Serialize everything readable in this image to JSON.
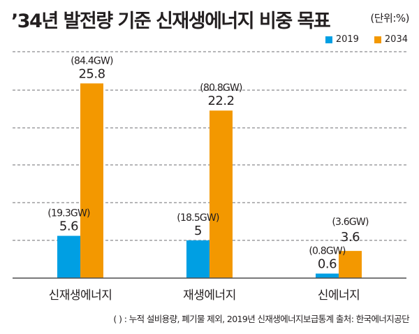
{
  "title": "’34년 발전량 기준 신재생에너지 비중 목표",
  "unit_label": "(단위:%)",
  "footnote": "( ) : 누적 설비용량, 폐기물 제외, 2019년 신재생에너지보급통계 출처: 한국에너지공단",
  "colors": {
    "series_2019": "#009fe3",
    "series_2034": "#f39800",
    "grid": "#6d6e71",
    "axis": "#4d4d4f",
    "text": "#231f20"
  },
  "chart_data": {
    "type": "bar",
    "title": "’34년 발전량 기준 신재생에너지 비중 목표",
    "xlabel": "",
    "ylabel": "(단위:%)",
    "categories": [
      "신재생에너지",
      "재생에너지",
      "신에너지"
    ],
    "series": [
      {
        "name": "2019",
        "values": [
          5.6,
          5,
          0.6
        ],
        "capacity_labels": [
          "(19.3GW)",
          "(18.5GW)",
          "(0.8GW)"
        ]
      },
      {
        "name": "2034",
        "values": [
          25.8,
          22.2,
          3.6
        ],
        "capacity_labels": [
          "(84.4GW)",
          "(80.8GW)",
          "(3.6GW)"
        ]
      }
    ],
    "value_labels": [
      [
        "5.6",
        "5",
        "0.6"
      ],
      [
        "25.8",
        "22.2",
        "3.6"
      ]
    ],
    "ylim": [
      0,
      30
    ],
    "grid": true,
    "legend": "top-right",
    "y_ticks_shown": false
  }
}
